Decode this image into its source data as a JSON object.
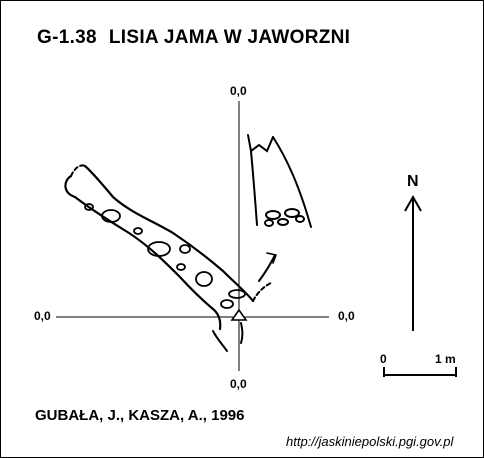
{
  "title": {
    "code": "G-1.38",
    "name": "LISIA JAMA W JAWORZNI"
  },
  "axes": {
    "top_label": "0,0",
    "bottom_label": "0,0",
    "left_label": "0,0",
    "right_label": "0,0"
  },
  "north_label": "N",
  "scale": {
    "start_label": "0",
    "end_label": "1 m"
  },
  "authors": "GUBAŁA, J., KASZA, A., 1996",
  "source_url": "http://jaskiniepolski.pgi.gov.pl"
}
